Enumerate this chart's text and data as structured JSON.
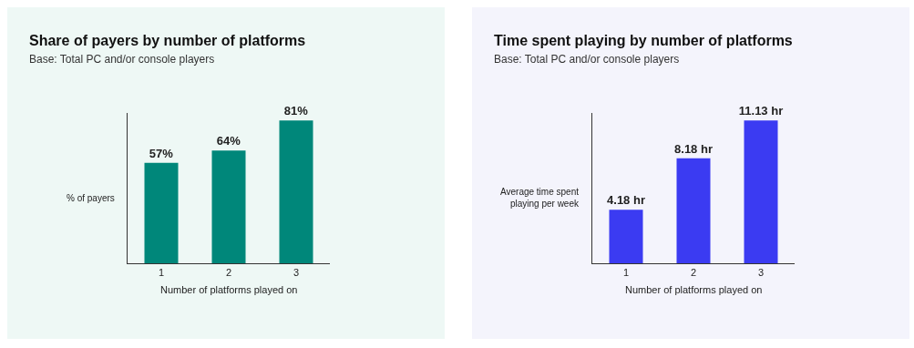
{
  "chart_data": [
    {
      "type": "bar",
      "title": "Share of payers by number of platforms",
      "subtitle": "Base: Total PC and/or console players",
      "xlabel": "Number of platforms played on",
      "ylabel": "% of payers",
      "categories": [
        "1",
        "2",
        "3"
      ],
      "values": [
        57,
        64,
        81
      ],
      "value_labels": [
        "57%",
        "64%",
        "81%"
      ],
      "color": "#00877a",
      "tick_labels": "x"
    },
    {
      "type": "bar",
      "title": "Time spent playing by number of platforms",
      "subtitle": "Base: Total PC and/or console players",
      "xlabel": "Number of platforms played on",
      "ylabel": "Average time spent playing per week",
      "categories": [
        "1",
        "2",
        "3"
      ],
      "values": [
        4.18,
        8.18,
        11.13
      ],
      "value_labels": [
        "4.18 hr",
        "8.18 hr",
        "11.13 hr"
      ],
      "color": "#3b3bf2",
      "tick_labels": "x"
    }
  ]
}
